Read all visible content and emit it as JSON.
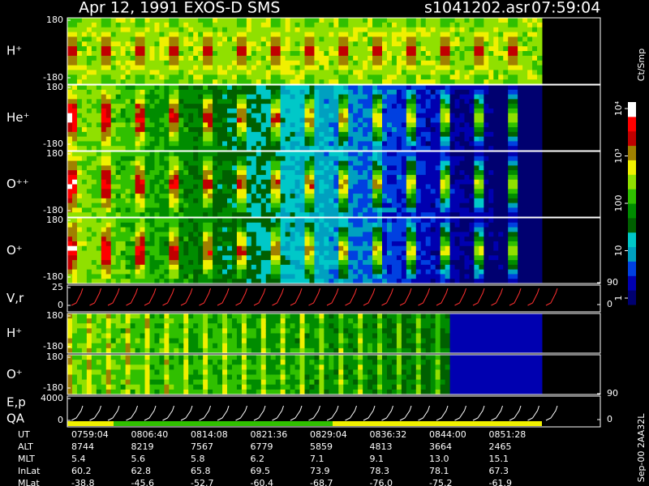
{
  "chart_data": {
    "type": "spectrogram",
    "title": "Apr 12, 1991   EXOS-D SMS",
    "file": "s1041202.asr",
    "time": "07:59:04",
    "colorbar_label": "Ct/Smp",
    "colorbar_ticks": [
      {
        "value": 10000,
        "label": "10⁴"
      },
      {
        "value": 1000,
        "label": "10³"
      },
      100,
      10,
      1
    ],
    "side_note": "Sep-00 2AA32L",
    "panels": [
      {
        "label": "H⁺",
        "yticks": [
          180,
          -180
        ]
      },
      {
        "label": "He⁺",
        "yticks": [
          180,
          -180
        ]
      },
      {
        "label": "O⁺⁺",
        "yticks": [
          180,
          -180
        ]
      },
      {
        "label": "O⁺",
        "yticks": [
          180,
          -180
        ]
      },
      {
        "label": "V,r",
        "yticks": [
          25,
          0
        ],
        "y2ticks": [
          90,
          0
        ]
      },
      {
        "label": "H⁺",
        "yticks": [
          180,
          -180
        ]
      },
      {
        "label": "O⁺",
        "yticks": [
          180,
          -180
        ]
      },
      {
        "label": "E,p",
        "label2": "QA",
        "yticks": [
          4000,
          0
        ],
        "y2ticks": [
          90,
          0
        ]
      }
    ],
    "table": [
      {
        "name": "UT",
        "cells": [
          "0759:04",
          "0806:40",
          "0814:08",
          "0821:36",
          "0829:04",
          "0836:32",
          "0844:00",
          "0851:28"
        ]
      },
      {
        "name": "ALT",
        "cells": [
          "8744",
          "8219",
          "7567",
          "6779",
          "5859",
          "4813",
          "3664",
          "2465"
        ]
      },
      {
        "name": "MLT",
        "cells": [
          "5.4",
          "5.6",
          "5.8",
          "6.2",
          "7.1",
          "9.1",
          "13.0",
          "15.1"
        ]
      },
      {
        "name": "InLat",
        "cells": [
          "60.2",
          "62.8",
          "65.8",
          "69.5",
          "73.9",
          "78.3",
          "78.1",
          "67.3"
        ]
      },
      {
        "name": "MLat",
        "cells": [
          "-38.8",
          "-45.6",
          "-52.7",
          "-60.4",
          "-68.7",
          "-76.0",
          "-75.2",
          "-61.9"
        ]
      }
    ]
  }
}
